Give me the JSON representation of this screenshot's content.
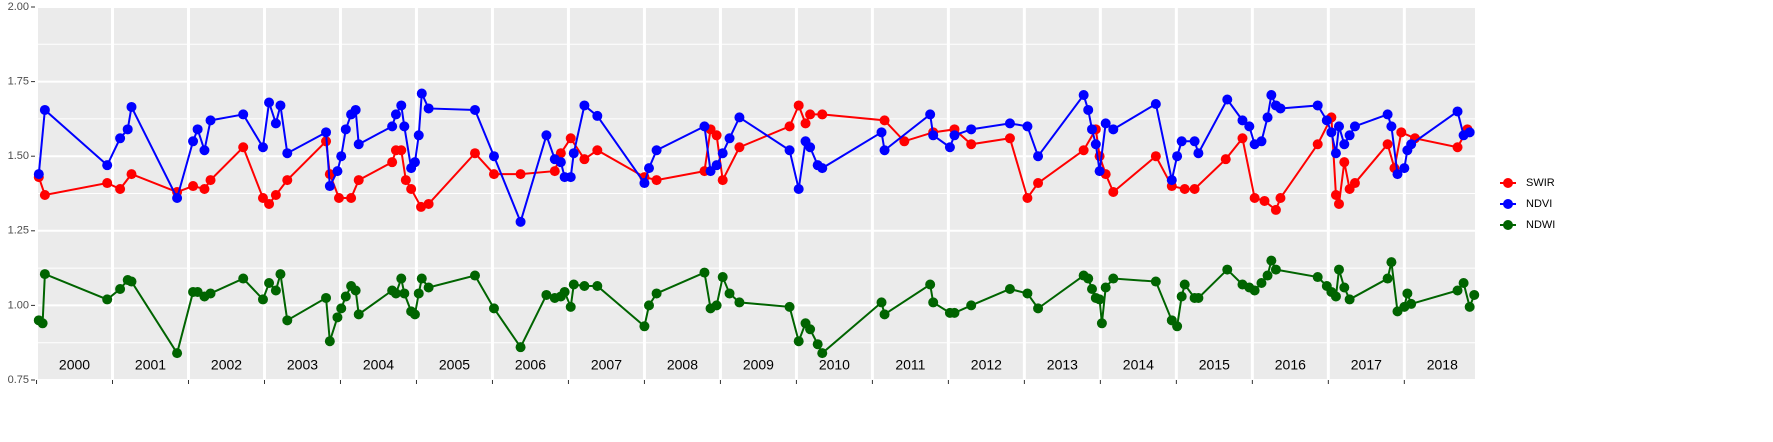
{
  "chart_data": {
    "type": "line",
    "xlim": [
      1999.98,
      2018.93
    ],
    "ylim": [
      0.75,
      2.0
    ],
    "xticks": [
      2000,
      2001,
      2002,
      2003,
      2004,
      2005,
      2006,
      2007,
      2008,
      2009,
      2010,
      2011,
      2012,
      2013,
      2014,
      2015,
      2016,
      2017,
      2018
    ],
    "yticks": [
      {
        "value": 0.75,
        "label": "0.75"
      },
      {
        "value": 1.0,
        "label": "1.00"
      },
      {
        "value": 1.25,
        "label": "1.25"
      },
      {
        "value": 1.5,
        "label": "1.50"
      },
      {
        "value": 1.75,
        "label": "1.75"
      },
      {
        "value": 2.0,
        "label": "2.00"
      }
    ],
    "grid": true,
    "legend": "right",
    "series": [
      {
        "name": "SWIR",
        "color": "#ff0000",
        "x": [
          2000.03,
          2000.11,
          2000.93,
          2001.1,
          2001.25,
          2001.85,
          2002.06,
          2002.21,
          2002.29,
          2002.72,
          2002.98,
          2003.06,
          2003.15,
          2003.3,
          2003.81,
          2003.86,
          2003.98,
          2004.14,
          2004.24,
          2004.68,
          2004.73,
          2004.8,
          2004.86,
          2004.93,
          2005.06,
          2005.16,
          2005.77,
          2006.02,
          2006.37,
          2006.82,
          2006.9,
          2007.03,
          2007.21,
          2007.38,
          2008.0,
          2008.16,
          2008.79,
          2008.87,
          2008.95,
          2009.03,
          2009.25,
          2009.91,
          2010.03,
          2010.12,
          2010.18,
          2010.34,
          2011.16,
          2011.42,
          2011.8,
          2012.08,
          2012.3,
          2012.81,
          2013.04,
          2013.18,
          2013.78,
          2013.94,
          2013.99,
          2014.07,
          2014.17,
          2014.73,
          2014.94,
          2015.11,
          2015.24,
          2015.65,
          2015.87,
          2016.03,
          2016.16,
          2016.31,
          2016.37,
          2016.86,
          2017.04,
          2017.1,
          2017.14,
          2017.21,
          2017.28,
          2017.35,
          2017.78,
          2017.87,
          2017.96,
          2018.14,
          2018.7,
          2018.83
        ],
        "values": [
          1.43,
          1.37,
          1.41,
          1.39,
          1.44,
          1.38,
          1.4,
          1.39,
          1.42,
          1.53,
          1.36,
          1.34,
          1.37,
          1.42,
          1.55,
          1.44,
          1.36,
          1.36,
          1.42,
          1.48,
          1.52,
          1.52,
          1.42,
          1.39,
          1.33,
          1.34,
          1.51,
          1.44,
          1.44,
          1.45,
          1.51,
          1.56,
          1.49,
          1.52,
          1.43,
          1.42,
          1.45,
          1.59,
          1.57,
          1.42,
          1.53,
          1.6,
          1.67,
          1.61,
          1.64,
          1.64,
          1.62,
          1.55,
          1.58,
          1.59,
          1.54,
          1.56,
          1.36,
          1.41,
          1.52,
          1.59,
          1.5,
          1.44,
          1.38,
          1.5,
          1.4,
          1.39,
          1.39,
          1.49,
          1.56,
          1.36,
          1.35,
          1.32,
          1.36,
          1.54,
          1.63,
          1.37,
          1.34,
          1.48,
          1.39,
          1.41,
          1.54,
          1.46,
          1.58,
          1.56,
          1.53,
          1.59
        ]
      },
      {
        "name": "NDVI",
        "color": "#0000ff",
        "x": [
          2000.03,
          2000.11,
          2000.93,
          2001.1,
          2001.2,
          2001.25,
          2001.85,
          2002.06,
          2002.12,
          2002.21,
          2002.29,
          2002.72,
          2002.98,
          2003.06,
          2003.15,
          2003.21,
          2003.3,
          2003.81,
          2003.86,
          2003.96,
          2004.01,
          2004.07,
          2004.14,
          2004.2,
          2004.24,
          2004.68,
          2004.73,
          2004.8,
          2004.84,
          2004.93,
          2004.98,
          2005.03,
          2005.07,
          2005.16,
          2005.77,
          2006.02,
          2006.37,
          2006.71,
          2006.82,
          2006.9,
          2006.95,
          2007.03,
          2007.07,
          2007.21,
          2007.38,
          2008.0,
          2008.06,
          2008.16,
          2008.79,
          2008.87,
          2008.95,
          2009.03,
          2009.12,
          2009.25,
          2009.91,
          2010.03,
          2010.12,
          2010.18,
          2010.28,
          2010.34,
          2011.12,
          2011.16,
          2011.76,
          2011.8,
          2012.02,
          2012.08,
          2012.3,
          2012.81,
          2013.04,
          2013.18,
          2013.78,
          2013.84,
          2013.89,
          2013.94,
          2013.99,
          2014.07,
          2014.17,
          2014.73,
          2014.94,
          2015.01,
          2015.07,
          2015.24,
          2015.29,
          2015.67,
          2015.87,
          2015.96,
          2016.03,
          2016.12,
          2016.2,
          2016.25,
          2016.31,
          2016.37,
          2016.86,
          2016.98,
          2017.04,
          2017.1,
          2017.14,
          2017.21,
          2017.28,
          2017.35,
          2017.78,
          2017.83,
          2017.91,
          2018.0,
          2018.04,
          2018.09,
          2018.7,
          2018.78,
          2018.86
        ],
        "values": [
          1.44,
          1.655,
          1.47,
          1.56,
          1.59,
          1.665,
          1.36,
          1.55,
          1.59,
          1.52,
          1.62,
          1.64,
          1.53,
          1.68,
          1.61,
          1.67,
          1.51,
          1.58,
          1.4,
          1.45,
          1.5,
          1.59,
          1.64,
          1.655,
          1.54,
          1.6,
          1.64,
          1.67,
          1.6,
          1.46,
          1.48,
          1.57,
          1.71,
          1.66,
          1.655,
          1.5,
          1.28,
          1.57,
          1.49,
          1.48,
          1.43,
          1.43,
          1.51,
          1.67,
          1.635,
          1.41,
          1.46,
          1.52,
          1.6,
          1.45,
          1.47,
          1.51,
          1.56,
          1.63,
          1.52,
          1.39,
          1.55,
          1.53,
          1.47,
          1.46,
          1.58,
          1.52,
          1.64,
          1.57,
          1.53,
          1.57,
          1.59,
          1.61,
          1.6,
          1.5,
          1.705,
          1.655,
          1.59,
          1.54,
          1.45,
          1.61,
          1.59,
          1.675,
          1.42,
          1.5,
          1.55,
          1.55,
          1.51,
          1.69,
          1.62,
          1.6,
          1.54,
          1.55,
          1.63,
          1.705,
          1.67,
          1.66,
          1.67,
          1.62,
          1.58,
          1.51,
          1.6,
          1.54,
          1.57,
          1.6,
          1.64,
          1.6,
          1.44,
          1.46,
          1.52,
          1.54,
          1.65,
          1.57,
          1.58
        ]
      },
      {
        "name": "NDWI",
        "color": "#006400",
        "x": [
          2000.03,
          2000.08,
          2000.11,
          2000.93,
          2001.1,
          2001.2,
          2001.25,
          2001.85,
          2002.06,
          2002.12,
          2002.21,
          2002.29,
          2002.72,
          2002.98,
          2003.06,
          2003.15,
          2003.21,
          2003.3,
          2003.81,
          2003.86,
          2003.96,
          2004.01,
          2004.07,
          2004.14,
          2004.2,
          2004.24,
          2004.68,
          2004.73,
          2004.8,
          2004.84,
          2004.93,
          2004.98,
          2005.03,
          2005.07,
          2005.16,
          2005.77,
          2006.02,
          2006.37,
          2006.71,
          2006.82,
          2006.9,
          2006.95,
          2007.03,
          2007.07,
          2007.21,
          2007.38,
          2008.0,
          2008.06,
          2008.16,
          2008.79,
          2008.87,
          2008.95,
          2009.03,
          2009.12,
          2009.25,
          2009.91,
          2010.03,
          2010.12,
          2010.18,
          2010.28,
          2010.34,
          2011.12,
          2011.16,
          2011.76,
          2011.8,
          2012.02,
          2012.08,
          2012.3,
          2012.81,
          2013.04,
          2013.18,
          2013.78,
          2013.84,
          2013.89,
          2013.94,
          2013.99,
          2014.02,
          2014.07,
          2014.17,
          2014.73,
          2014.94,
          2015.01,
          2015.07,
          2015.11,
          2015.24,
          2015.29,
          2015.67,
          2015.87,
          2015.96,
          2016.03,
          2016.12,
          2016.2,
          2016.25,
          2016.31,
          2016.86,
          2016.98,
          2017.04,
          2017.1,
          2017.14,
          2017.21,
          2017.28,
          2017.78,
          2017.83,
          2017.91,
          2018.0,
          2018.04,
          2018.09,
          2018.7,
          2018.78,
          2018.86,
          2018.92
        ],
        "values": [
          0.95,
          0.94,
          1.105,
          1.02,
          1.055,
          1.085,
          1.08,
          0.84,
          1.045,
          1.045,
          1.03,
          1.04,
          1.09,
          1.02,
          1.075,
          1.05,
          1.105,
          0.95,
          1.025,
          0.88,
          0.96,
          0.99,
          1.03,
          1.065,
          1.05,
          0.97,
          1.05,
          1.04,
          1.09,
          1.04,
          0.98,
          0.97,
          1.04,
          1.09,
          1.06,
          1.1,
          0.99,
          0.86,
          1.035,
          1.025,
          1.03,
          1.045,
          0.995,
          1.07,
          1.065,
          1.065,
          0.93,
          1.0,
          1.04,
          1.11,
          0.99,
          1.0,
          1.095,
          1.04,
          1.01,
          0.995,
          0.88,
          0.94,
          0.92,
          0.87,
          0.84,
          1.01,
          0.97,
          1.07,
          1.01,
          0.975,
          0.975,
          1.0,
          1.055,
          1.04,
          0.99,
          1.1,
          1.09,
          1.055,
          1.025,
          1.02,
          0.94,
          1.06,
          1.09,
          1.08,
          0.95,
          0.93,
          1.03,
          1.07,
          1.025,
          1.025,
          1.12,
          1.07,
          1.06,
          1.05,
          1.075,
          1.1,
          1.15,
          1.12,
          1.095,
          1.065,
          1.045,
          1.03,
          1.12,
          1.06,
          1.02,
          1.09,
          1.145,
          0.98,
          0.995,
          1.04,
          1.005,
          1.05,
          1.075,
          0.995,
          1.035
        ]
      }
    ]
  }
}
